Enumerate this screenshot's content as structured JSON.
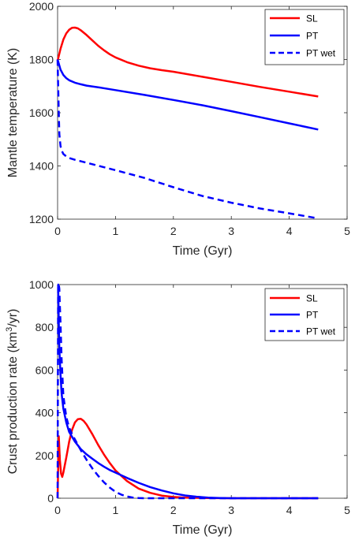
{
  "chart_data": [
    {
      "type": "line",
      "xlabel": "Time (Gyr)",
      "ylabel": "Mantle temperature (K)",
      "xlim": [
        0,
        5
      ],
      "ylim": [
        1200,
        2000
      ],
      "xticks": [
        "0",
        "1",
        "2",
        "3",
        "4",
        "5"
      ],
      "yticks": [
        "1200",
        "1400",
        "1600",
        "1800",
        "2000"
      ],
      "grid": false,
      "legend_position": "top-right",
      "series": [
        {
          "name": "SL",
          "color": "#ff0000",
          "style": "solid",
          "x": [
            0,
            0.05,
            0.1,
            0.15,
            0.2,
            0.25,
            0.3,
            0.35,
            0.4,
            0.5,
            0.6,
            0.7,
            0.8,
            0.9,
            1.0,
            1.2,
            1.4,
            1.6,
            1.8,
            2.0,
            2.5,
            3.0,
            3.5,
            4.0,
            4.5
          ],
          "y": [
            1795,
            1840,
            1875,
            1898,
            1912,
            1919,
            1920,
            1917,
            1910,
            1892,
            1872,
            1852,
            1835,
            1820,
            1808,
            1790,
            1777,
            1767,
            1760,
            1754,
            1735,
            1716,
            1697,
            1679,
            1661
          ]
        },
        {
          "name": "PT",
          "color": "#0000ff",
          "style": "solid",
          "x": [
            0,
            0.02,
            0.05,
            0.1,
            0.15,
            0.2,
            0.3,
            0.4,
            0.5,
            0.75,
            1.0,
            1.5,
            2.0,
            2.5,
            3.0,
            3.5,
            4.0,
            4.5
          ],
          "y": [
            1800,
            1785,
            1762,
            1742,
            1730,
            1722,
            1713,
            1707,
            1702,
            1694,
            1685,
            1667,
            1648,
            1628,
            1606,
            1583,
            1560,
            1537
          ]
        },
        {
          "name": "PT wet",
          "color": "#0000ff",
          "style": "dashed",
          "x": [
            0,
            0.01,
            0.02,
            0.03,
            0.05,
            0.07,
            0.1,
            0.15,
            0.2,
            0.3,
            0.5,
            0.75,
            1.0,
            1.5,
            2.0,
            2.5,
            3.0,
            3.5,
            4.0,
            4.5
          ],
          "y": [
            1800,
            1700,
            1600,
            1520,
            1475,
            1458,
            1445,
            1436,
            1430,
            1423,
            1412,
            1398,
            1384,
            1355,
            1320,
            1287,
            1262,
            1240,
            1222,
            1203
          ]
        }
      ]
    },
    {
      "type": "line",
      "xlabel": "Time (Gyr)",
      "ylabel_main": "Crust production rate (km",
      "ylabel_sup": "3",
      "ylabel_tail": "/yr)",
      "xlim": [
        0,
        5
      ],
      "ylim": [
        0,
        1000
      ],
      "xticks": [
        "0",
        "1",
        "2",
        "3",
        "4",
        "5"
      ],
      "yticks": [
        "0",
        "200",
        "400",
        "600",
        "800",
        "1000"
      ],
      "grid": false,
      "legend_position": "top-right",
      "series": [
        {
          "name": "SL",
          "color": "#ff0000",
          "style": "solid",
          "x": [
            0,
            0.02,
            0.04,
            0.06,
            0.08,
            0.1,
            0.15,
            0.2,
            0.25,
            0.3,
            0.35,
            0.4,
            0.45,
            0.5,
            0.6,
            0.7,
            0.8,
            0.9,
            1.0,
            1.2,
            1.4,
            1.6,
            1.8,
            2.0,
            2.2,
            2.5,
            3.0,
            4.5
          ],
          "y": [
            0,
            290,
            180,
            115,
            100,
            120,
            190,
            265,
            320,
            355,
            370,
            372,
            362,
            345,
            300,
            250,
            205,
            165,
            130,
            80,
            45,
            25,
            12,
            6,
            3,
            1,
            0,
            0
          ]
        },
        {
          "name": "PT",
          "color": "#0000ff",
          "style": "solid",
          "x": [
            0,
            0.01,
            0.02,
            0.03,
            0.05,
            0.07,
            0.1,
            0.15,
            0.2,
            0.3,
            0.4,
            0.5,
            0.6,
            0.7,
            0.8,
            0.9,
            1.0,
            1.2,
            1.4,
            1.6,
            1.8,
            2.0,
            2.2,
            2.4,
            2.6,
            2.8,
            3.0,
            4.5
          ],
          "y": [
            1000,
            1000,
            820,
            700,
            580,
            490,
            420,
            355,
            310,
            265,
            230,
            205,
            185,
            165,
            148,
            132,
            120,
            95,
            72,
            52,
            36,
            23,
            13,
            7,
            3,
            1,
            0,
            0
          ]
        },
        {
          "name": "PT wet",
          "color": "#0000ff",
          "style": "dashed",
          "x": [
            0,
            0.01,
            0.02,
            0.03,
            0.04,
            0.05,
            0.07,
            0.1,
            0.15,
            0.2,
            0.25,
            0.3,
            0.4,
            0.5,
            0.6,
            0.7,
            0.8,
            0.9,
            1.0,
            1.1,
            1.2,
            1.3,
            1.4,
            1.5,
            4.5
          ],
          "y": [
            0,
            1000,
            1000,
            980,
            900,
            820,
            650,
            480,
            380,
            330,
            300,
            275,
            225,
            180,
            140,
            105,
            75,
            50,
            30,
            17,
            8,
            3,
            1,
            0,
            0
          ]
        }
      ]
    }
  ]
}
